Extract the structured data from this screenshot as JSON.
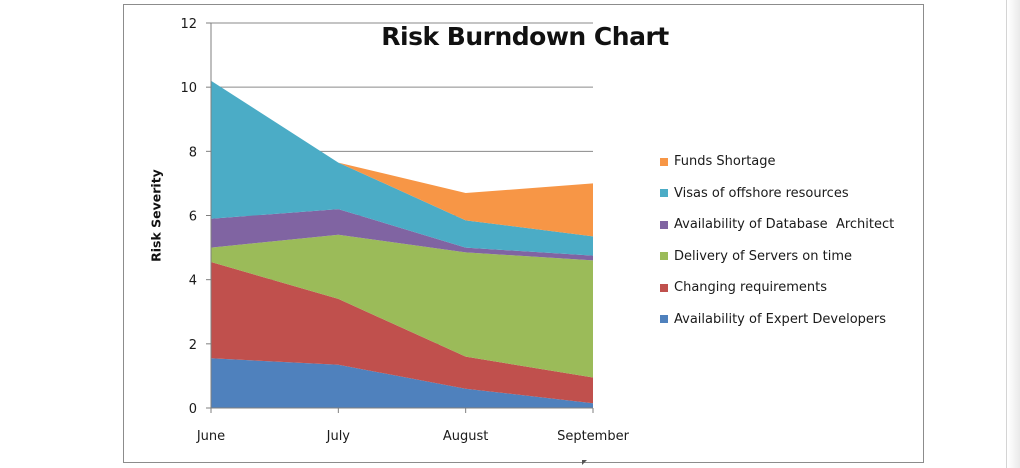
{
  "chart_data": {
    "type": "area",
    "stacked": true,
    "title": "Risk Burndown Chart",
    "ylabel": "Risk Severity",
    "xlabel": "",
    "categories": [
      "June",
      "July",
      "August",
      "September"
    ],
    "ylim": [
      0,
      12
    ],
    "yticks": [
      0,
      2,
      4,
      6,
      8,
      10,
      12
    ],
    "grid": "horizontal",
    "legend_position": "right",
    "series": [
      {
        "name": "Availability of Expert Developers",
        "color": "#4f81bd",
        "values": [
          1.55,
          1.35,
          0.6,
          0.15
        ]
      },
      {
        "name": "Changing requirements",
        "color": "#c0504d",
        "values": [
          3.0,
          2.05,
          1.0,
          0.8
        ]
      },
      {
        "name": "Delivery of Servers on time",
        "color": "#9bbb59",
        "values": [
          0.45,
          2.0,
          3.25,
          3.65
        ]
      },
      {
        "name": "Availability of Database  Architect",
        "color": "#8064a2",
        "values": [
          0.9,
          0.8,
          0.15,
          0.15
        ]
      },
      {
        "name": "Visas of offshore resources",
        "color": "#4bacc6",
        "values": [
          4.3,
          1.45,
          0.85,
          0.6
        ]
      },
      {
        "name": "Funds Shortage",
        "color": "#f79646",
        "values": [
          0.0,
          0.0,
          0.85,
          1.65
        ]
      }
    ]
  }
}
